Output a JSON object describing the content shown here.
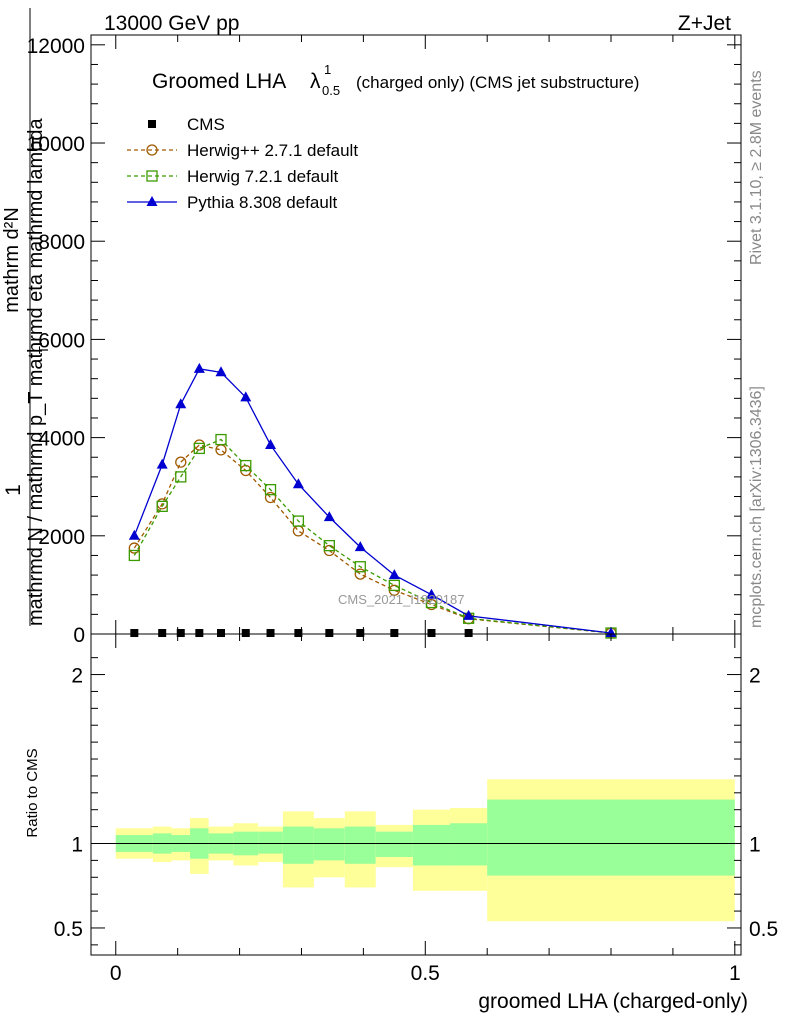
{
  "header": {
    "left": "13000 GeV pp",
    "right": "Z+Jet"
  },
  "side_labels": {
    "rivet": "Rivet 3.1.10, ≥ 2.8M events",
    "mcplots": "mcplots.cern.ch [arXiv:1306.3436]"
  },
  "watermark": "CMS_2021_I1920187",
  "chart_data": [
    {
      "type": "line",
      "title": "Groomed LHA",
      "title_symbol": "λ",
      "title_superscript": "1",
      "title_subscript": "0.5",
      "title_suffix": "(charged only) (CMS jet substructure)",
      "ylabel_numerator": "1",
      "ylabel_denominator": "mathrmd N / mathrmd p_T mathrmd eta  mathrmd lambda",
      "ylabel_subscript_T": "T",
      "ylabel_top": "mathrm d²N",
      "xlim": [
        -0.04,
        1.01
      ],
      "ylim": [
        0,
        12200
      ],
      "yticks": [
        0,
        2000,
        4000,
        6000,
        8000,
        10000,
        12000
      ],
      "ytick_labels": [
        "0",
        "2000",
        "4000",
        "6000",
        "8000",
        "10000",
        "12000"
      ],
      "x": [
        0.03,
        0.075,
        0.105,
        0.135,
        0.17,
        0.21,
        0.25,
        0.295,
        0.345,
        0.395,
        0.45,
        0.51,
        0.57,
        0.8
      ],
      "series": [
        {
          "name": "CMS",
          "color": "#000000",
          "marker": "square-filled",
          "values": [
            20,
            20,
            20,
            20,
            20,
            20,
            20,
            20,
            20,
            20,
            20,
            20,
            20,
            null
          ]
        },
        {
          "name": "Herwig++ 2.7.1 default",
          "color": "#a05a00",
          "marker": "circle-open",
          "dashed": true,
          "values": [
            1750,
            2650,
            3500,
            3850,
            3750,
            3330,
            2780,
            2100,
            1700,
            1220,
            890,
            600,
            310,
            20
          ]
        },
        {
          "name": "Herwig 7.2.1 default",
          "color": "#3a9a00",
          "marker": "square-open",
          "dashed": true,
          "values": [
            1600,
            2600,
            3200,
            3780,
            3960,
            3430,
            2940,
            2300,
            1800,
            1370,
            990,
            640,
            320,
            20
          ]
        },
        {
          "name": "Pythia 8.308 default",
          "color": "#0000d0",
          "marker": "triangle-filled",
          "values": [
            2000,
            3450,
            4680,
            5400,
            5330,
            4820,
            3850,
            3050,
            2380,
            1770,
            1200,
            800,
            370,
            20
          ]
        }
      ]
    },
    {
      "type": "area",
      "ylabel": "Ratio to CMS",
      "xlabel": "groomed LHA (charged-only)",
      "xlim": [
        -0.04,
        1.01
      ],
      "ylim": [
        0.34,
        2.24
      ],
      "xticks": [
        0,
        0.5,
        1
      ],
      "xtick_labels": [
        "0",
        "0.5",
        "1"
      ],
      "yticks": [
        0.5,
        1,
        2
      ],
      "ytick_labels": [
        "0.5",
        "1",
        "2"
      ],
      "bins": [
        {
          "lo": 0.0,
          "hi": 0.06,
          "in_lo": 0.95,
          "in_hi": 1.05,
          "out_lo": 0.91,
          "out_hi": 1.09
        },
        {
          "lo": 0.06,
          "hi": 0.09,
          "in_lo": 0.94,
          "in_hi": 1.06,
          "out_lo": 0.89,
          "out_hi": 1.1
        },
        {
          "lo": 0.09,
          "hi": 0.12,
          "in_lo": 0.95,
          "in_hi": 1.05,
          "out_lo": 0.9,
          "out_hi": 1.09
        },
        {
          "lo": 0.12,
          "hi": 0.15,
          "in_lo": 0.91,
          "in_hi": 1.09,
          "out_lo": 0.82,
          "out_hi": 1.15
        },
        {
          "lo": 0.15,
          "hi": 0.19,
          "in_lo": 0.94,
          "in_hi": 1.06,
          "out_lo": 0.9,
          "out_hi": 1.1
        },
        {
          "lo": 0.19,
          "hi": 0.23,
          "in_lo": 0.93,
          "in_hi": 1.07,
          "out_lo": 0.87,
          "out_hi": 1.12
        },
        {
          "lo": 0.23,
          "hi": 0.27,
          "in_lo": 0.94,
          "in_hi": 1.07,
          "out_lo": 0.89,
          "out_hi": 1.1
        },
        {
          "lo": 0.27,
          "hi": 0.32,
          "in_lo": 0.88,
          "in_hi": 1.1,
          "out_lo": 0.74,
          "out_hi": 1.19
        },
        {
          "lo": 0.32,
          "hi": 0.37,
          "in_lo": 0.9,
          "in_hi": 1.09,
          "out_lo": 0.8,
          "out_hi": 1.15
        },
        {
          "lo": 0.37,
          "hi": 0.42,
          "in_lo": 0.88,
          "in_hi": 1.1,
          "out_lo": 0.74,
          "out_hi": 1.19
        },
        {
          "lo": 0.42,
          "hi": 0.48,
          "in_lo": 0.92,
          "in_hi": 1.07,
          "out_lo": 0.86,
          "out_hi": 1.11
        },
        {
          "lo": 0.48,
          "hi": 0.54,
          "in_lo": 0.87,
          "in_hi": 1.11,
          "out_lo": 0.72,
          "out_hi": 1.2
        },
        {
          "lo": 0.54,
          "hi": 0.6,
          "in_lo": 0.87,
          "in_hi": 1.12,
          "out_lo": 0.72,
          "out_hi": 1.21
        },
        {
          "lo": 0.6,
          "hi": 1.0,
          "in_lo": 0.81,
          "in_hi": 1.26,
          "out_lo": 0.54,
          "out_hi": 1.38
        }
      ],
      "band_colors": {
        "inner": "#99ff99",
        "outer": "#ffff99"
      }
    }
  ]
}
